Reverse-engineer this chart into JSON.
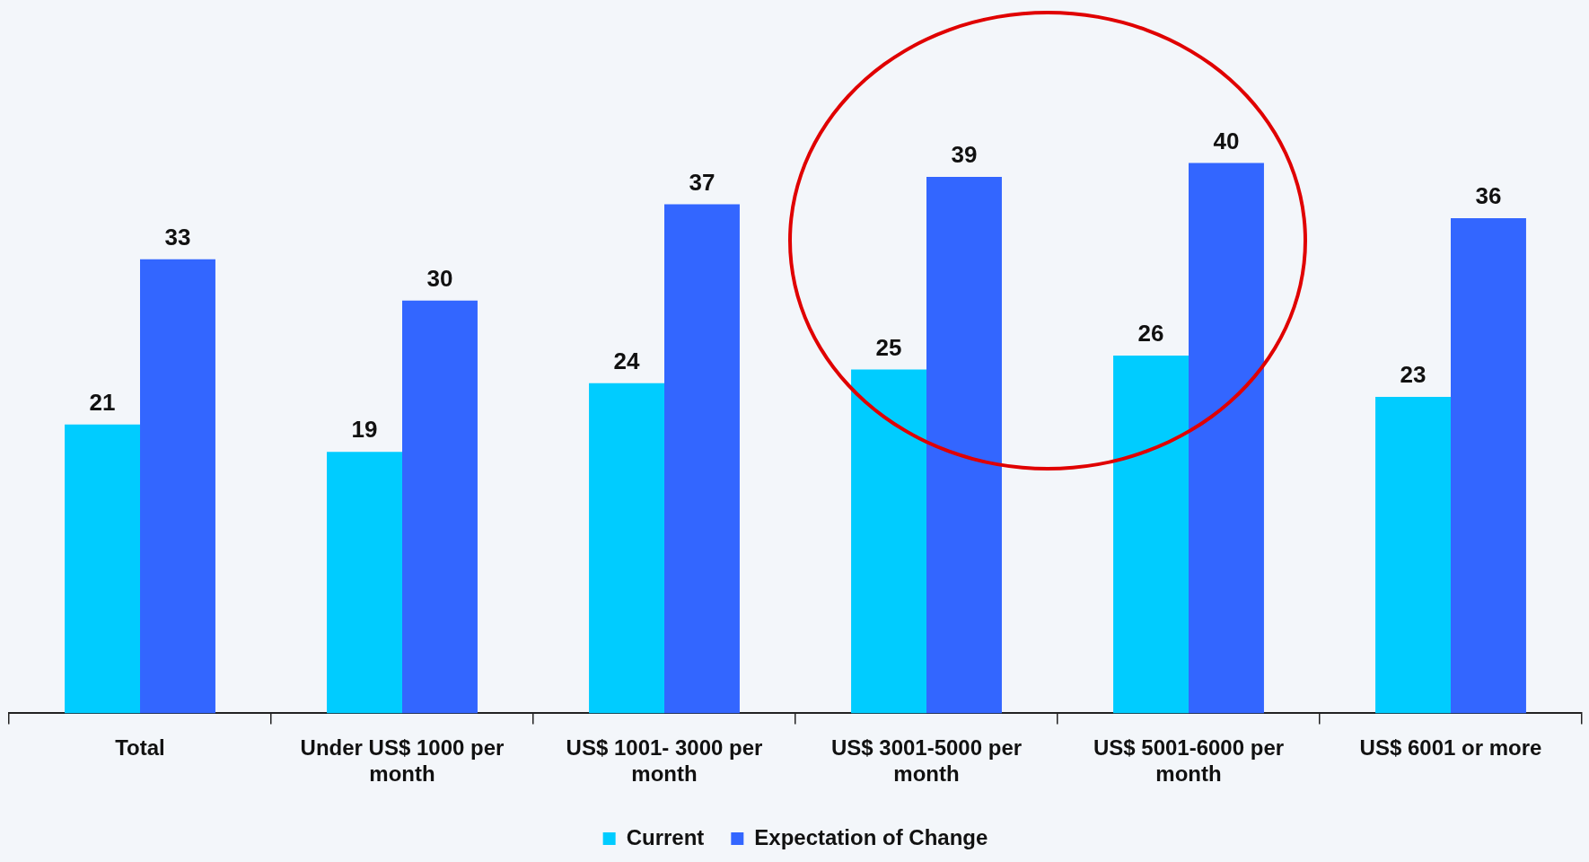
{
  "chart_data": {
    "type": "bar",
    "categories": [
      "Total",
      "Under US$ 1000 per month",
      "US$ 1001- 3000 per month",
      "US$ 3001-5000 per month",
      "US$ 5001-6000 per month",
      "US$ 6001 or more"
    ],
    "series": [
      {
        "name": "Current",
        "color": "#00ccff",
        "values": [
          21,
          19,
          24,
          25,
          26,
          23
        ]
      },
      {
        "name": "Expectation of Change",
        "color": "#3366ff",
        "values": [
          33,
          30,
          37,
          39,
          40,
          36
        ]
      }
    ],
    "data_labels": true,
    "legend": "bottom",
    "grid": false
  }
}
